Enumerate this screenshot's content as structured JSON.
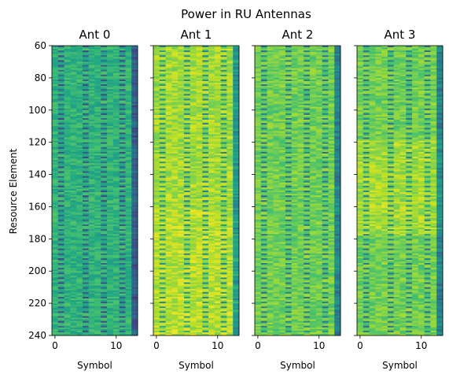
{
  "chart_data": {
    "type": "heatmap",
    "title": "Power in RU Antennas",
    "ylabel": "Resource Element",
    "xlabel": "Symbol",
    "y_ticks": [
      60,
      80,
      100,
      120,
      140,
      160,
      180,
      200,
      220,
      240
    ],
    "x_ticks": [
      0,
      10
    ],
    "x_range": [
      0,
      13
    ],
    "y_range": [
      60,
      240
    ],
    "colormap": "viridis",
    "panels": [
      {
        "title": "Ant 0",
        "level": 0.64
      },
      {
        "title": "Ant 1",
        "level": 0.86
      },
      {
        "title": "Ant 2",
        "level": 0.78
      },
      {
        "title": "Ant 3",
        "level": 0.78
      }
    ]
  }
}
